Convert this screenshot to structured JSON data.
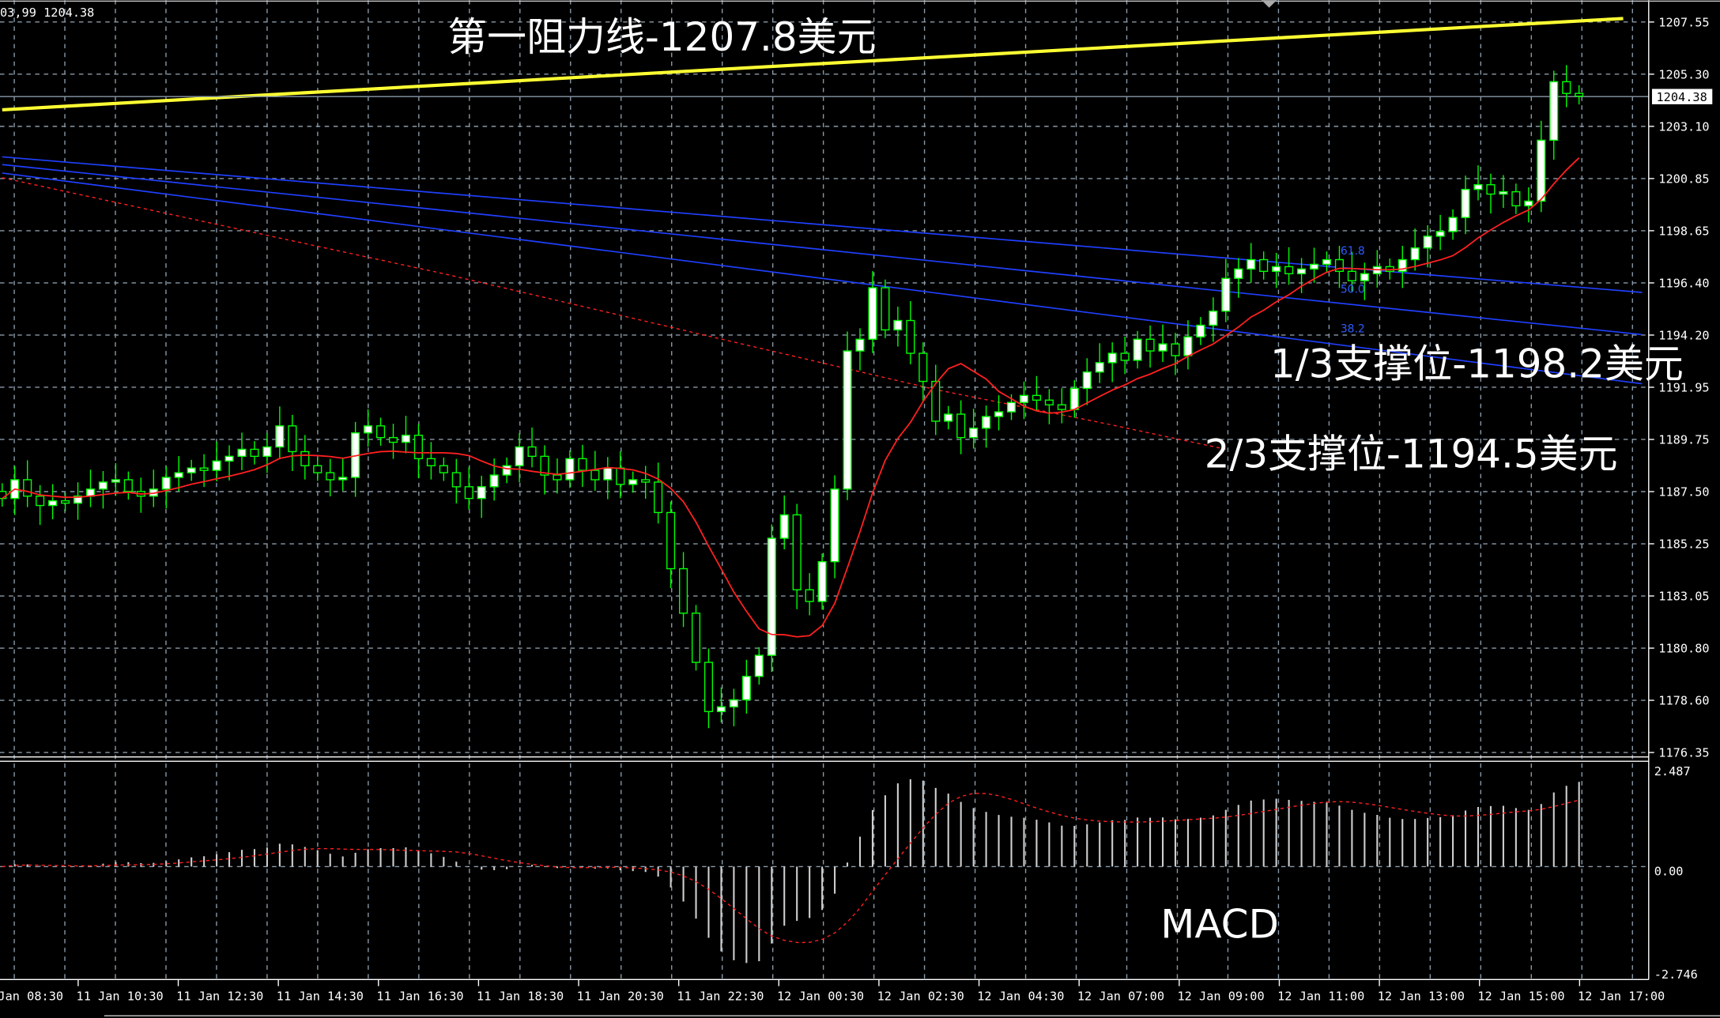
{
  "header": {
    "ohlc_readout": "03,99 1204.38"
  },
  "colors": {
    "background": "#000000",
    "grid": "#8a9aa8",
    "candle": "#00ff00",
    "ma": "#ff2020",
    "resistance": "#ffff33",
    "trend": "#2040ff",
    "fib": "#2f5bff",
    "text": "#ffffff"
  },
  "annotations": {
    "resistance1": "第一阻力线-1207.8美元",
    "support1": "1/3支撑位-1198.2美元",
    "support2": "2/3支撑位-1194.5美元",
    "macd": "MACD"
  },
  "price_axis": {
    "labels": [
      "1207.55",
      "1205.30",
      "1203.10",
      "1200.85",
      "1198.65",
      "1196.40",
      "1194.20",
      "1191.95",
      "1189.75",
      "1187.50",
      "1185.25",
      "1183.05",
      "1180.80",
      "1178.60",
      "1176.35"
    ],
    "current_price": "1204.38"
  },
  "macd_axis": {
    "labels": [
      "2.487",
      "0.00",
      "-2.746"
    ]
  },
  "time_axis": {
    "labels": [
      "11 Jan 08:30",
      "11 Jan 10:30",
      "11 Jan 12:30",
      "11 Jan 14:30",
      "11 Jan 16:30",
      "11 Jan 18:30",
      "11 Jan 20:30",
      "11 Jan 22:30",
      "12 Jan 00:30",
      "12 Jan 02:30",
      "12 Jan 04:30",
      "12 Jan 07:00",
      "12 Jan 09:00",
      "12 Jan 11:00",
      "12 Jan 13:00",
      "12 Jan 15:00",
      "12 Jan 17:00"
    ]
  },
  "fib_levels": [
    "61.8",
    "50.0",
    "38.2"
  ],
  "chart_data": {
    "type": "candlestick",
    "ylim": [
      1176.35,
      1207.55
    ],
    "macd_ylim": [
      -2.746,
      2.487
    ],
    "closes": [
      1187.2,
      1188.0,
      1187.3,
      1186.9,
      1187.1,
      1187.0,
      1187.3,
      1187.6,
      1187.9,
      1188.0,
      1187.5,
      1187.3,
      1187.6,
      1188.1,
      1188.3,
      1188.5,
      1188.4,
      1188.8,
      1189.0,
      1189.3,
      1189.0,
      1189.4,
      1190.3,
      1189.2,
      1188.6,
      1188.3,
      1188.0,
      1188.1,
      1190.0,
      1190.3,
      1189.8,
      1189.6,
      1189.9,
      1188.9,
      1188.6,
      1188.3,
      1187.7,
      1187.2,
      1187.7,
      1188.2,
      1188.6,
      1189.4,
      1189.0,
      1188.2,
      1188.0,
      1188.9,
      1188.4,
      1188.0,
      1188.5,
      1187.8,
      1188.0,
      1187.9,
      1186.6,
      1184.2,
      1182.3,
      1180.2,
      1178.1,
      1178.3,
      1178.6,
      1179.6,
      1180.5,
      1185.5,
      1186.5,
      1183.3,
      1182.8,
      1184.5,
      1187.6,
      1193.5,
      1194.0,
      1196.2,
      1194.4,
      1194.8,
      1193.4,
      1192.2,
      1190.5,
      1190.8,
      1189.8,
      1190.2,
      1190.7,
      1190.9,
      1191.3,
      1191.6,
      1191.4,
      1191.2,
      1191.0,
      1191.9,
      1192.6,
      1193.0,
      1193.4,
      1193.1,
      1194.0,
      1193.5,
      1193.8,
      1193.3,
      1194.1,
      1194.6,
      1195.2,
      1196.6,
      1197.0,
      1197.4,
      1196.9,
      1197.1,
      1196.8,
      1197.0,
      1197.2,
      1197.4,
      1196.9,
      1196.5,
      1196.8,
      1197.1,
      1196.9,
      1197.4,
      1197.9,
      1198.4,
      1198.6,
      1199.2,
      1200.4,
      1200.6,
      1200.2,
      1200.3,
      1199.7,
      1199.9,
      1202.5,
      1205.0,
      1204.5,
      1204.38
    ],
    "long_ma": [
      [
        0,
        1200.9
      ],
      [
        35,
        1196.8
      ],
      [
        61,
        1193.5
      ],
      [
        74,
        1191.85
      ],
      [
        87,
        1190.45
      ],
      [
        97,
        1189.3
      ]
    ],
    "lines": {
      "resistance": [
        [
          0,
          1203.8
        ],
        [
          128.5,
          1207.7
        ]
      ],
      "trend": [
        [
          [
            0,
            1201.79
          ],
          [
            130,
            1196.0
          ]
        ],
        [
          [
            0,
            1201.46
          ],
          [
            130,
            1194.2
          ]
        ],
        [
          [
            0,
            1201.1
          ],
          [
            130,
            1192.1
          ]
        ]
      ]
    }
  }
}
